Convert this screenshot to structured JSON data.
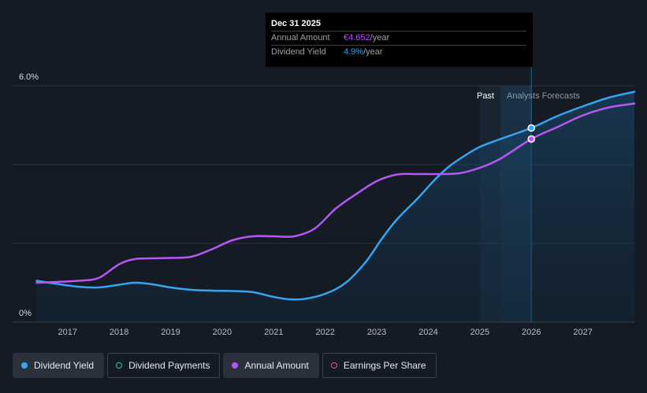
{
  "tooltip": {
    "date": "Dec 31 2025",
    "rows": [
      {
        "label": "Annual Amount",
        "value": "€4.652",
        "unit": "/year"
      },
      {
        "label": "Dividend Yield",
        "value": "4.9%",
        "unit": "/year"
      }
    ]
  },
  "chart_data": {
    "type": "line",
    "y_ticks": [
      "6.0%",
      "0%"
    ],
    "ylim_percent": [
      0,
      6.0
    ],
    "xlim_year": [
      2016.3,
      2028.0
    ],
    "x_ticks": [
      "2017",
      "2018",
      "2019",
      "2020",
      "2021",
      "2022",
      "2023",
      "2024",
      "2025",
      "2026",
      "2027"
    ],
    "regions": {
      "past_label": "Past",
      "forecast_label": "Analysts Forecasts",
      "past_start_year": 2025.0,
      "forecast_start_year": 2025.4,
      "marker_year": 2026.0
    },
    "series": [
      {
        "name": "Dividend Yield",
        "unit": "%",
        "color": "#36a4f0",
        "area": true,
        "points": [
          [
            2016.4,
            1.05
          ],
          [
            2016.8,
            0.97
          ],
          [
            2017.2,
            0.9
          ],
          [
            2017.6,
            0.88
          ],
          [
            2018.0,
            0.95
          ],
          [
            2018.3,
            1.0
          ],
          [
            2018.6,
            0.97
          ],
          [
            2019.0,
            0.88
          ],
          [
            2019.4,
            0.82
          ],
          [
            2019.8,
            0.8
          ],
          [
            2020.2,
            0.79
          ],
          [
            2020.6,
            0.76
          ],
          [
            2021.0,
            0.64
          ],
          [
            2021.3,
            0.58
          ],
          [
            2021.6,
            0.59
          ],
          [
            2022.0,
            0.72
          ],
          [
            2022.4,
            1.0
          ],
          [
            2022.8,
            1.55
          ],
          [
            2023.1,
            2.12
          ],
          [
            2023.4,
            2.62
          ],
          [
            2023.8,
            3.15
          ],
          [
            2024.1,
            3.58
          ],
          [
            2024.4,
            3.95
          ],
          [
            2024.7,
            4.22
          ],
          [
            2025.0,
            4.45
          ],
          [
            2025.4,
            4.65
          ],
          [
            2026.0,
            4.93
          ],
          [
            2026.5,
            5.23
          ],
          [
            2027.0,
            5.48
          ],
          [
            2027.5,
            5.7
          ],
          [
            2028.0,
            5.85
          ]
        ]
      },
      {
        "name": "Annual Amount",
        "unit": "EUR",
        "color": "#b657f5",
        "area": false,
        "points": [
          [
            2016.4,
            1.0
          ],
          [
            2016.8,
            1.02
          ],
          [
            2017.2,
            1.05
          ],
          [
            2017.6,
            1.12
          ],
          [
            2018.0,
            1.47
          ],
          [
            2018.3,
            1.6
          ],
          [
            2018.6,
            1.62
          ],
          [
            2019.0,
            1.63
          ],
          [
            2019.4,
            1.66
          ],
          [
            2019.8,
            1.85
          ],
          [
            2020.2,
            2.08
          ],
          [
            2020.6,
            2.18
          ],
          [
            2021.0,
            2.18
          ],
          [
            2021.4,
            2.18
          ],
          [
            2021.8,
            2.38
          ],
          [
            2022.2,
            2.88
          ],
          [
            2022.6,
            3.25
          ],
          [
            2023.0,
            3.58
          ],
          [
            2023.4,
            3.75
          ],
          [
            2023.8,
            3.76
          ],
          [
            2024.2,
            3.76
          ],
          [
            2024.6,
            3.78
          ],
          [
            2025.0,
            3.92
          ],
          [
            2025.4,
            4.15
          ],
          [
            2026.0,
            4.65
          ],
          [
            2026.5,
            4.95
          ],
          [
            2027.0,
            5.25
          ],
          [
            2027.5,
            5.45
          ],
          [
            2028.0,
            5.55
          ]
        ]
      }
    ]
  },
  "legend": [
    {
      "label": "Dividend Yield",
      "color": "#36a4f0",
      "style": "filled",
      "active": true
    },
    {
      "label": "Dividend Payments",
      "color": "#26c8b4",
      "style": "ring",
      "active": false
    },
    {
      "label": "Annual Amount",
      "color": "#b657f5",
      "style": "filled",
      "active": true
    },
    {
      "label": "Earnings Per Share",
      "color": "#e0528a",
      "style": "ring",
      "active": false
    }
  ]
}
